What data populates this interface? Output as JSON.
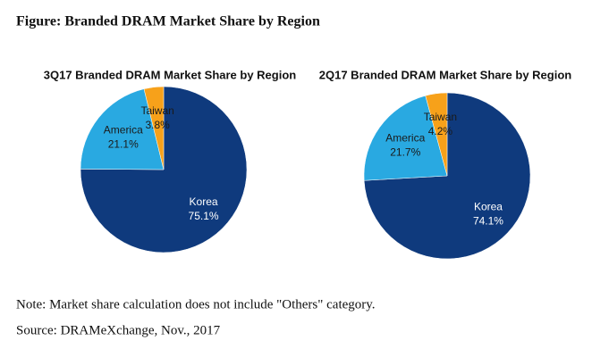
{
  "figure_title": "Figure: Branded DRAM Market Share by Region",
  "chart_data": [
    {
      "type": "pie",
      "title": "3Q17 Branded DRAM Market Share by Region",
      "categories": [
        "Korea",
        "America",
        "Taiwan"
      ],
      "values": [
        75.1,
        21.1,
        3.8
      ],
      "value_labels": [
        "75.1%",
        "21.1%",
        "3.8%"
      ],
      "colors": [
        "#0f3a7d",
        "#29a9e1",
        "#f7a11a"
      ]
    },
    {
      "type": "pie",
      "title": "2Q17 Branded DRAM Market Share by Region",
      "categories": [
        "Korea",
        "America",
        "Taiwan"
      ],
      "values": [
        74.1,
        21.7,
        4.2
      ],
      "value_labels": [
        "74.1%",
        "21.7%",
        "4.2%"
      ],
      "colors": [
        "#0f3a7d",
        "#29a9e1",
        "#f7a11a"
      ]
    }
  ],
  "note": "Note: Market share calculation does not include \"Others\" category.",
  "source": "Source: DRAMeXchange, Nov., 2017"
}
